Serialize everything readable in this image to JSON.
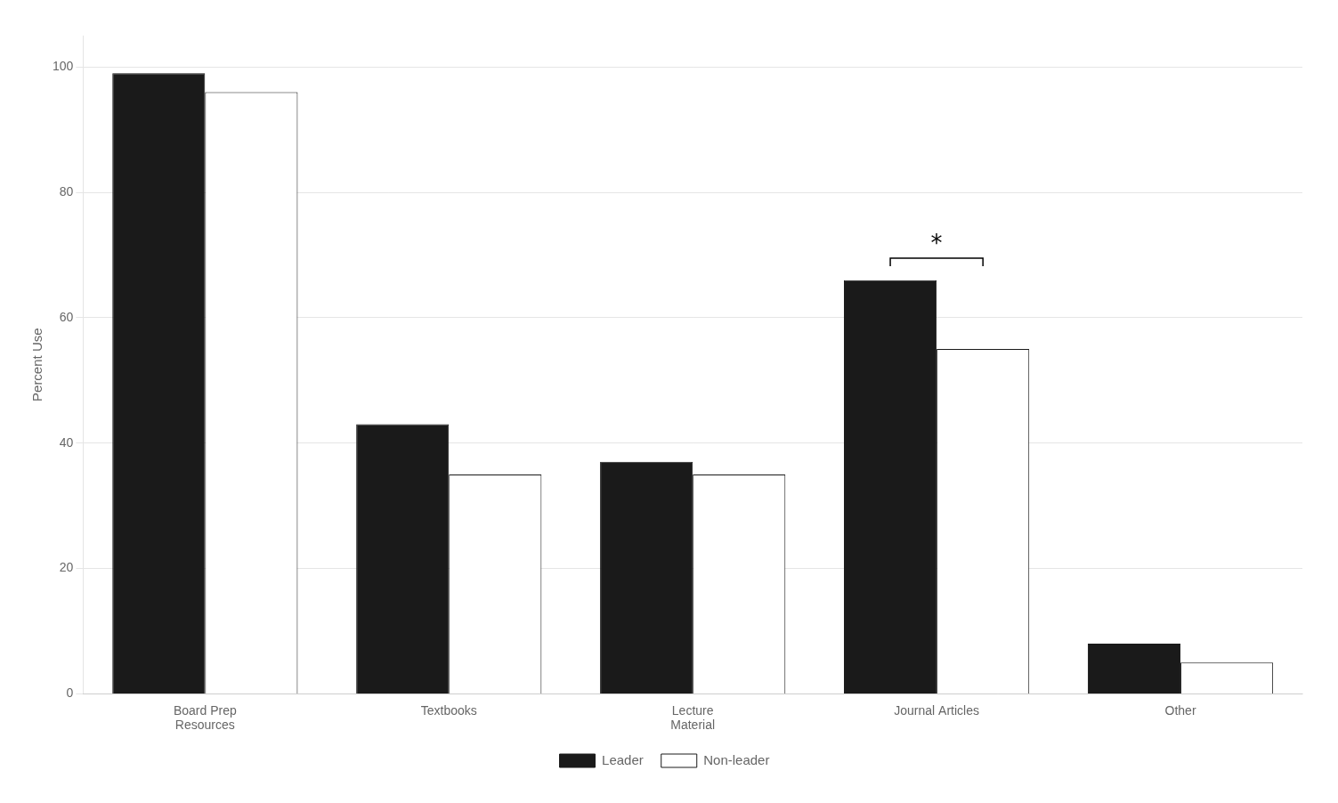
{
  "chart_data": {
    "type": "bar",
    "categories": [
      "Board Prep\nResources",
      "Textbooks",
      "Lecture\nMaterial",
      "Journal Articles",
      "Other"
    ],
    "series": [
      {
        "name": "Leader",
        "color": "#1a1a1a",
        "values": [
          99,
          43,
          37,
          66,
          8
        ]
      },
      {
        "name": "Non-leader",
        "color": "#ffffff",
        "values": [
          96,
          35,
          35,
          55,
          5
        ]
      }
    ],
    "y_label": "Percent Use",
    "ylim": [
      0,
      105
    ],
    "yticks": [
      0,
      20,
      40,
      60,
      80,
      100
    ],
    "grid": true,
    "legend": "bottom",
    "annotations": [
      {
        "text": "*",
        "x": "Journal Articles",
        "y": 69.5
      }
    ]
  }
}
